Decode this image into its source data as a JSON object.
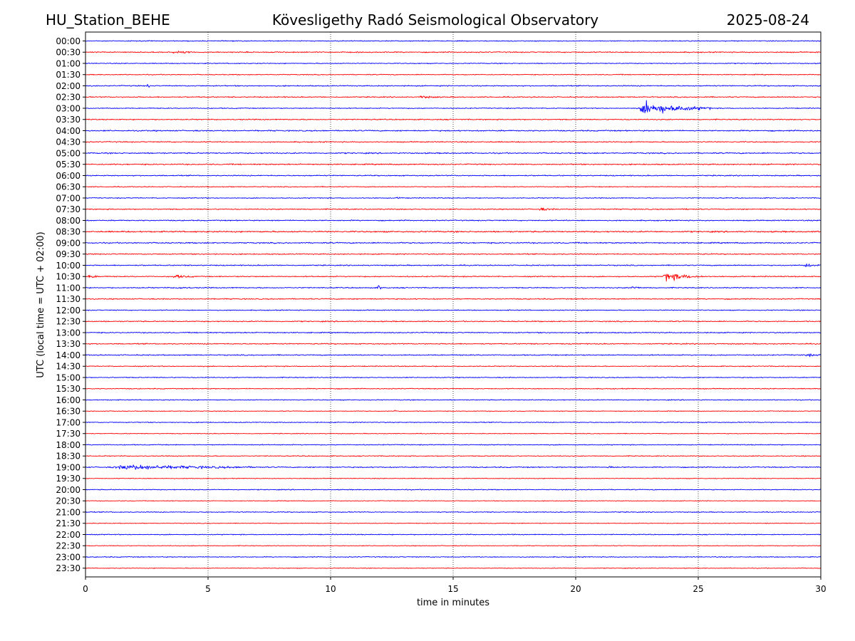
{
  "chart_data": {
    "type": "line",
    "title_left": "HU_Station_BEHE",
    "title_center": "Kövesligethy Radó Seismological Observatory",
    "title_right": "2025-08-24",
    "xlabel": "time in minutes",
    "ylabel": "UTC (local time = UTC + 02:00)",
    "xlim": [
      0,
      30
    ],
    "x_ticks": [
      0,
      5,
      10,
      15,
      20,
      25,
      30
    ],
    "x_tick_labels": [
      "0",
      "5",
      "10",
      "15",
      "20",
      "25",
      "30"
    ],
    "grid": "vertical dotted at x ticks",
    "colors": [
      "#0000ff",
      "#ff0000"
    ],
    "rows": [
      {
        "label": "00:00",
        "color": "#0000ff",
        "noise": 0.5,
        "events": []
      },
      {
        "label": "00:30",
        "color": "#ff0000",
        "noise": 0.6,
        "events": [
          {
            "t": 3.5,
            "dur": 1.0,
            "amp": 1.2
          }
        ]
      },
      {
        "label": "01:00",
        "color": "#0000ff",
        "noise": 0.5,
        "events": []
      },
      {
        "label": "01:30",
        "color": "#ff0000",
        "noise": 0.5,
        "events": []
      },
      {
        "label": "02:00",
        "color": "#0000ff",
        "noise": 0.6,
        "events": [
          {
            "t": 2.5,
            "dur": 0.15,
            "amp": 3.0
          }
        ]
      },
      {
        "label": "02:30",
        "color": "#ff0000",
        "noise": 0.6,
        "events": [
          {
            "t": 13.6,
            "dur": 0.8,
            "amp": 1.5
          }
        ]
      },
      {
        "label": "03:00",
        "color": "#0000ff",
        "noise": 0.5,
        "events": [
          {
            "t": 22.5,
            "dur": 3.0,
            "amp": 7.0
          }
        ]
      },
      {
        "label": "03:30",
        "color": "#ff0000",
        "noise": 0.6,
        "events": []
      },
      {
        "label": "04:00",
        "color": "#0000ff",
        "noise": 0.7,
        "events": []
      },
      {
        "label": "04:30",
        "color": "#ff0000",
        "noise": 0.6,
        "events": []
      },
      {
        "label": "05:00",
        "color": "#0000ff",
        "noise": 0.7,
        "events": []
      },
      {
        "label": "05:30",
        "color": "#ff0000",
        "noise": 0.7,
        "events": []
      },
      {
        "label": "06:00",
        "color": "#0000ff",
        "noise": 0.6,
        "events": []
      },
      {
        "label": "06:30",
        "color": "#ff0000",
        "noise": 0.5,
        "events": []
      },
      {
        "label": "07:00",
        "color": "#0000ff",
        "noise": 0.5,
        "events": [
          {
            "t": 12.7,
            "dur": 0.3,
            "amp": 1.5
          }
        ]
      },
      {
        "label": "07:30",
        "color": "#ff0000",
        "noise": 0.6,
        "events": [
          {
            "t": 18.5,
            "dur": 0.7,
            "amp": 1.4
          },
          {
            "t": 24.5,
            "dur": 0.1,
            "amp": 1.8
          }
        ]
      },
      {
        "label": "08:00",
        "color": "#0000ff",
        "noise": 0.6,
        "events": []
      },
      {
        "label": "08:30",
        "color": "#ff0000",
        "noise": 0.8,
        "events": []
      },
      {
        "label": "09:00",
        "color": "#0000ff",
        "noise": 0.7,
        "events": []
      },
      {
        "label": "09:30",
        "color": "#ff0000",
        "noise": 0.6,
        "events": []
      },
      {
        "label": "10:00",
        "color": "#0000ff",
        "noise": 0.6,
        "events": [
          {
            "t": 29.3,
            "dur": 0.7,
            "amp": 2.0
          }
        ]
      },
      {
        "label": "10:30",
        "color": "#ff0000",
        "noise": 0.6,
        "events": [
          {
            "t": 0.1,
            "dur": 0.5,
            "amp": 2.0
          },
          {
            "t": 3.5,
            "dur": 1.0,
            "amp": 1.8
          },
          {
            "t": 23.5,
            "dur": 1.7,
            "amp": 4.5
          }
        ]
      },
      {
        "label": "11:00",
        "color": "#0000ff",
        "noise": 0.6,
        "events": [
          {
            "t": 3.7,
            "dur": 0.6,
            "amp": 1.3
          },
          {
            "t": 11.9,
            "dur": 0.2,
            "amp": 4.0
          },
          {
            "t": 22.2,
            "dur": 0.5,
            "amp": 2.0
          }
        ]
      },
      {
        "label": "11:30",
        "color": "#ff0000",
        "noise": 0.6,
        "events": []
      },
      {
        "label": "12:00",
        "color": "#0000ff",
        "noise": 0.5,
        "events": []
      },
      {
        "label": "12:30",
        "color": "#ff0000",
        "noise": 0.6,
        "events": []
      },
      {
        "label": "13:00",
        "color": "#0000ff",
        "noise": 0.6,
        "events": [
          {
            "t": 20.0,
            "dur": 0.2,
            "amp": 1.3
          }
        ]
      },
      {
        "label": "13:30",
        "color": "#ff0000",
        "noise": 0.6,
        "events": []
      },
      {
        "label": "14:00",
        "color": "#0000ff",
        "noise": 0.6,
        "events": [
          {
            "t": 29.3,
            "dur": 0.7,
            "amp": 1.5
          }
        ]
      },
      {
        "label": "14:30",
        "color": "#ff0000",
        "noise": 0.5,
        "events": []
      },
      {
        "label": "15:00",
        "color": "#0000ff",
        "noise": 0.5,
        "events": []
      },
      {
        "label": "15:30",
        "color": "#ff0000",
        "noise": 0.5,
        "events": []
      },
      {
        "label": "16:00",
        "color": "#0000ff",
        "noise": 0.5,
        "events": []
      },
      {
        "label": "16:30",
        "color": "#ff0000",
        "noise": 0.4,
        "events": [
          {
            "t": 12.6,
            "dur": 0.3,
            "amp": 1.5
          }
        ]
      },
      {
        "label": "17:00",
        "color": "#0000ff",
        "noise": 0.5,
        "events": []
      },
      {
        "label": "17:30",
        "color": "#ff0000",
        "noise": 0.4,
        "events": []
      },
      {
        "label": "18:00",
        "color": "#0000ff",
        "noise": 0.5,
        "events": []
      },
      {
        "label": "18:30",
        "color": "#ff0000",
        "noise": 0.5,
        "events": []
      },
      {
        "label": "19:00",
        "color": "#0000ff",
        "noise": 0.6,
        "events": [
          {
            "t": 1.0,
            "dur": 6.0,
            "amp": 2.6
          },
          {
            "t": 21.3,
            "dur": 0.4,
            "amp": 1.2
          }
        ]
      },
      {
        "label": "19:30",
        "color": "#ff0000",
        "noise": 0.4,
        "events": []
      },
      {
        "label": "20:00",
        "color": "#0000ff",
        "noise": 0.5,
        "events": []
      },
      {
        "label": "20:30",
        "color": "#ff0000",
        "noise": 0.4,
        "events": []
      },
      {
        "label": "21:00",
        "color": "#0000ff",
        "noise": 0.5,
        "events": []
      },
      {
        "label": "21:30",
        "color": "#ff0000",
        "noise": 0.4,
        "events": []
      },
      {
        "label": "22:00",
        "color": "#0000ff",
        "noise": 0.5,
        "events": []
      },
      {
        "label": "22:30",
        "color": "#ff0000",
        "noise": 0.4,
        "events": []
      },
      {
        "label": "23:00",
        "color": "#0000ff",
        "noise": 0.5,
        "events": []
      },
      {
        "label": "23:30",
        "color": "#ff0000",
        "noise": 0.4,
        "events": []
      }
    ]
  }
}
